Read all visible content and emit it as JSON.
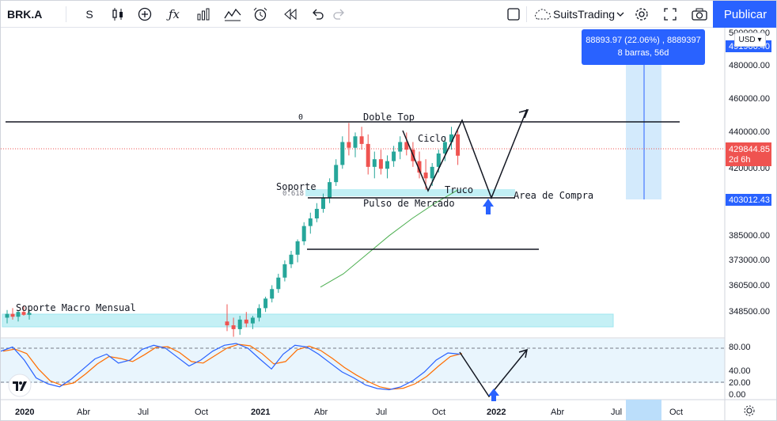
{
  "toolbar": {
    "symbol": "BRK.A",
    "interval": "S",
    "brand": "SuitsTrading",
    "publish_label": "Publicar",
    "icons": [
      "candles-icon",
      "plus-circle-icon",
      "fx-icon",
      "bars-icon",
      "indicators-icon",
      "alarm-icon",
      "replay-icon",
      "undo-icon",
      "redo-icon",
      "square-icon",
      "cloud-icon",
      "gear-icon",
      "fullscreen-icon",
      "camera-icon"
    ]
  },
  "measure": {
    "line1": "88893.97 (22.06%) , 8889397",
    "line2": "8 barras, 56d"
  },
  "currency": "USD",
  "price_axis": {
    "ticks": [
      "500000.00",
      "480000.00",
      "460000.00",
      "440000.00",
      "420000.00",
      "385000.00",
      "373000.00",
      "360500.00",
      "348500.00"
    ],
    "partial_top": "491906.40",
    "badge_last": "429844.85",
    "badge_countdown": "2d 6h",
    "badge_measure": "403012.43"
  },
  "osc_axis": {
    "ticks": [
      "80.00",
      "40.00",
      "20.00",
      "0.00"
    ]
  },
  "time_axis": {
    "ticks": [
      "2020",
      "Abr",
      "Jul",
      "Oct",
      "2021",
      "Abr",
      "Jul",
      "Oct",
      "2022",
      "Abr",
      "Jul",
      "Oct"
    ]
  },
  "annotations": {
    "doble_top": "Doble Top",
    "ciclo": "Ciclo",
    "soporte": "Soporte",
    "fib_zero": "0",
    "fib_level": "0.618",
    "truco": "Truco",
    "area_compra": "Area de Compra",
    "pulso": "Pulso de Mercado",
    "soporte_macro": "Soporte Macro Mensual"
  },
  "colors": {
    "up": "#26a69a",
    "down": "#ef5350",
    "accent": "#2962ff",
    "zone": "#b2ebf2",
    "ma": "#4caf50",
    "stoch_k": "#2962ff",
    "stoch_d": "#ff6d00"
  },
  "chart_data": {
    "type": "candlestick",
    "symbol": "BRK.A",
    "interval": "S",
    "ohlc_weekly": [
      [
        345000,
        349000,
        342000,
        347000
      ],
      [
        347000,
        350000,
        344000,
        345500
      ],
      [
        345500,
        348500,
        343000,
        348000
      ],
      [
        348000,
        351000,
        346000,
        346500
      ],
      [
        346500,
        349000,
        344000,
        347500
      ],
      [
        343000,
        352000,
        338000,
        341000
      ],
      [
        341000,
        345000,
        335000,
        339000
      ],
      [
        339000,
        346000,
        336000,
        344000
      ],
      [
        344000,
        348000,
        340000,
        342000
      ],
      [
        342000,
        346000,
        339000,
        345000
      ],
      [
        345000,
        352000,
        343000,
        350000
      ],
      [
        350000,
        356000,
        348000,
        355000
      ],
      [
        355000,
        362000,
        353000,
        360000
      ],
      [
        360000,
        368000,
        358000,
        366000
      ],
      [
        366000,
        375000,
        364000,
        373000
      ],
      [
        373000,
        380000,
        371000,
        378000
      ],
      [
        378000,
        386000,
        374000,
        385000
      ],
      [
        385000,
        395000,
        383000,
        393000
      ],
      [
        393000,
        400000,
        389000,
        397000
      ],
      [
        397000,
        405000,
        395000,
        402000
      ],
      [
        402000,
        410000,
        400000,
        408000
      ],
      [
        408000,
        418000,
        405000,
        416000
      ],
      [
        416000,
        428000,
        414000,
        425000
      ],
      [
        425000,
        440000,
        423000,
        437000
      ],
      [
        437000,
        447000,
        430000,
        434000
      ],
      [
        434000,
        442000,
        429000,
        440000
      ],
      [
        440000,
        445000,
        433000,
        436000
      ],
      [
        436000,
        441000,
        420000,
        424000
      ],
      [
        424000,
        432000,
        418000,
        428000
      ],
      [
        428000,
        433000,
        420000,
        423000
      ],
      [
        423000,
        430000,
        418000,
        427000
      ],
      [
        427000,
        435000,
        424000,
        432000
      ],
      [
        432000,
        440000,
        428000,
        437000
      ],
      [
        437000,
        442000,
        430000,
        433000
      ],
      [
        433000,
        437000,
        424000,
        427000
      ],
      [
        427000,
        432000,
        418000,
        421000
      ],
      [
        421000,
        428000,
        412000,
        418000
      ],
      [
        418000,
        426000,
        414000,
        424000
      ],
      [
        424000,
        433000,
        421000,
        431000
      ],
      [
        431000,
        440000,
        427000,
        437000
      ],
      [
        437000,
        445000,
        433000,
        441000
      ],
      [
        441000,
        443000,
        425000,
        429845
      ]
    ],
    "moving_average": [
      361000,
      368000,
      378000,
      388000,
      397000,
      405000,
      412000
    ],
    "oscillator": {
      "k_range": [
        0,
        100
      ],
      "levels": [
        80,
        20
      ]
    },
    "annotations": [
      "Doble Top",
      "Ciclo",
      "Soporte",
      "Truco",
      "Area de Compra",
      "Pulso de Mercado",
      "Soporte Macro Mensual"
    ],
    "ylim": [
      340000,
      505000
    ]
  }
}
